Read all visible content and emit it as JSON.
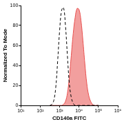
{
  "chart_data": {
    "type": "line",
    "x_label": "CD140a FITC",
    "y_label": "Normalized To Mode",
    "x": [
      316,
      398,
      501,
      631,
      794,
      1000,
      1259,
      1585,
      1995,
      2512,
      3162,
      3981,
      5012,
      6310,
      7943,
      10000,
      12589,
      15849,
      19953,
      25119,
      31623,
      39811,
      50119,
      63096,
      79433,
      100000
    ],
    "series": [
      {
        "type": "line",
        "color": "#000000",
        "line_style": "dashed",
        "values": [
          0,
          1,
          5,
          18,
          45,
          75,
          95,
          98,
          80,
          50,
          22,
          8,
          2,
          0,
          0,
          0,
          0,
          0,
          0,
          0,
          0,
          0,
          0,
          0,
          0,
          0
        ]
      },
      {
        "type": "area",
        "color": "#e8504f",
        "line_style": "solid",
        "values": [
          0,
          0,
          0,
          0,
          0,
          0,
          0,
          1,
          4,
          12,
          28,
          50,
          72,
          88,
          97,
          96,
          85,
          65,
          42,
          22,
          10,
          4,
          1,
          0,
          0,
          0
        ]
      }
    ],
    "log": "x",
    "xlim": [
      10,
      1000000
    ],
    "xticks": [
      {
        "value": 10,
        "label": "10¹"
      },
      {
        "value": 100,
        "label": "10²"
      },
      {
        "value": 1000,
        "label": "10³"
      },
      {
        "value": 10000,
        "label": "10⁴"
      },
      {
        "value": 100000,
        "label": "10⁵"
      },
      {
        "value": 1000000,
        "label": "10⁶"
      }
    ],
    "ylim": [
      0,
      100
    ],
    "yticks": [
      0,
      20,
      40,
      60,
      80,
      100
    ],
    "grid": false
  }
}
